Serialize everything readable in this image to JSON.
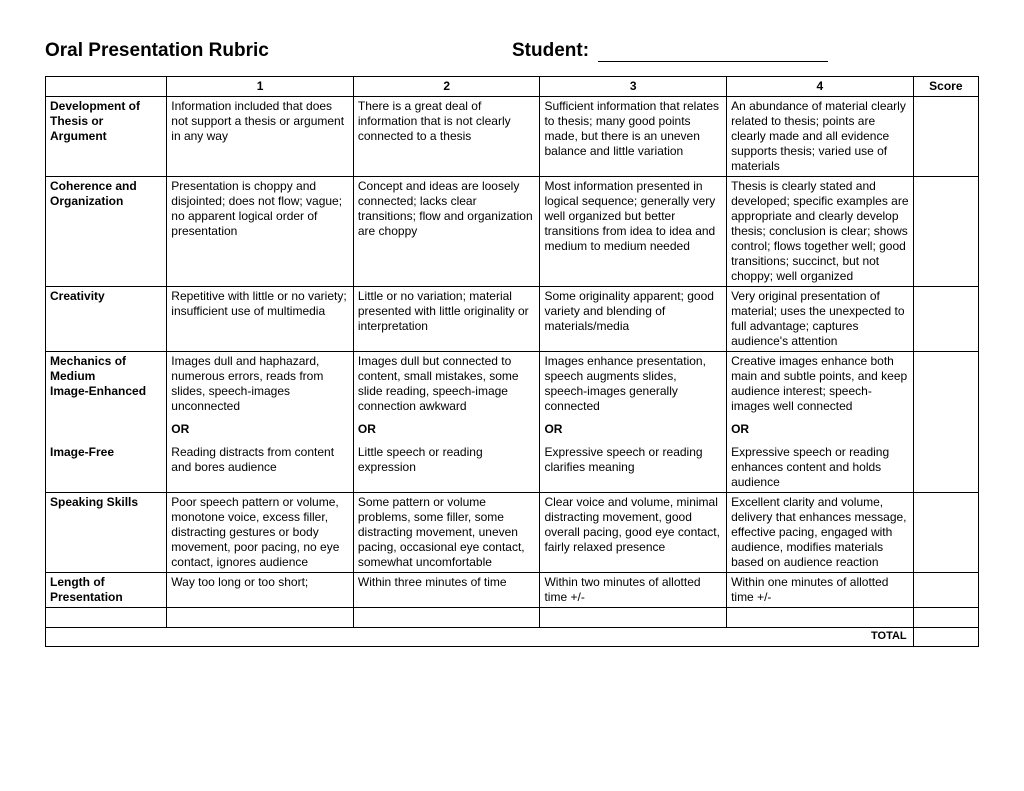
{
  "header": {
    "title": "Oral Presentation Rubric",
    "student_label": "Student:"
  },
  "columns": {
    "c1": "1",
    "c2": "2",
    "c3": "3",
    "c4": "4",
    "score": "Score"
  },
  "rows": {
    "dev": {
      "cat": "Development of Thesis or Argument",
      "l1": "Information included that does not support a thesis or argument in any way",
      "l2": "There is a great deal of information that is not clearly connected to a thesis",
      "l3": "Sufficient information that relates to thesis; many good points made, but there is an uneven balance and little variation",
      "l4": "An abundance of material clearly related to thesis; points are clearly made and all evidence supports thesis; varied use of materials"
    },
    "coh": {
      "cat": "Coherence and Organization",
      "l1": "Presentation is choppy and disjointed; does not flow; vague; no apparent logical order of presentation",
      "l2": "Concept and ideas are loosely connected; lacks clear transitions; flow and organization are choppy",
      "l3": "Most information presented in logical sequence; generally very well organized but better transitions from idea to idea and medium to medium needed",
      "l4": "Thesis is clearly stated and developed; specific examples are appropriate and clearly develop thesis; conclusion is clear; shows control; flows together well; good transitions; succinct, but not choppy; well organized"
    },
    "cre": {
      "cat": "Creativity",
      "l1": "Repetitive with little or no variety; insufficient use of multimedia",
      "l2": "Little or no variation; material presented with little originality or interpretation",
      "l3": "Some originality apparent; good variety and blending of materials/media",
      "l4": "Very original presentation of material; uses the unexpected to full advantage; captures audience's attention"
    },
    "mech": {
      "cat": "Mechanics of Medium Image-Enhanced",
      "l1": "Images dull and haphazard, numerous errors, reads from slides, speech-images unconnected",
      "l2": "Images dull but connected to content, small mistakes, some slide reading, speech-image connection awkward",
      "l3": "Images enhance presentation, speech augments slides, speech-images generally connected",
      "l4": "Creative images enhance both main and subtle points, and keep audience interest; speech-images well connected"
    },
    "or": "OR",
    "imgfree": {
      "cat": "Image-Free",
      "l1": "Reading distracts from content and bores audience",
      "l2": "Little speech or reading expression",
      "l3": "Expressive speech or reading clarifies meaning",
      "l4": "Expressive speech or reading enhances content and holds audience"
    },
    "speak": {
      "cat": "Speaking Skills",
      "l1": "Poor speech pattern or volume, monotone voice, excess filler, distracting gestures or body movement, poor pacing, no eye contact, ignores audience",
      "l2": "Some pattern or volume problems, some filler, some distracting movement, uneven pacing, occasional eye contact, somewhat uncomfortable",
      "l3": "Clear voice and volume, minimal distracting movement, good overall pacing, good eye contact, fairly relaxed presence",
      "l4": "Excellent clarity and volume, delivery that enhances message, effective pacing, engaged with audience, modifies materials based on audience reaction"
    },
    "len": {
      "cat": "Length of Presentation",
      "l1": "Way too long or too short;",
      "l2": "Within three minutes of time",
      "l3": "Within two minutes of allotted time +/-",
      "l4": "Within one minutes of allotted time +/-"
    }
  },
  "total_label": "TOTAL"
}
